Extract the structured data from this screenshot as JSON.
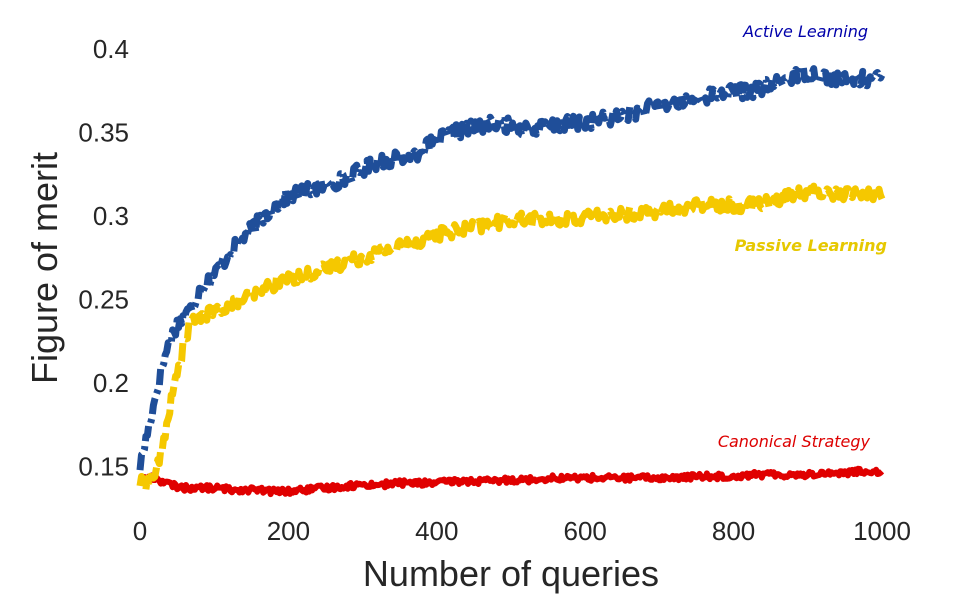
{
  "chart_data": {
    "type": "line",
    "title": "",
    "xlabel": "Number of queries",
    "ylabel": "Figure of merit",
    "xlim": [
      0,
      1000
    ],
    "ylim": [
      0.125,
      0.425
    ],
    "xticks": [
      0,
      200,
      400,
      600,
      800,
      1000
    ],
    "xtick_labels": [
      "0",
      "200",
      "400",
      "600",
      "800",
      "1000"
    ],
    "yticks": [
      0.15,
      0.2,
      0.25,
      0.3,
      0.35,
      0.4
    ],
    "ytick_labels": [
      "0.15",
      "0.2",
      "0.25",
      "0.3",
      "0.35",
      "0.4"
    ],
    "grid": false,
    "legend": "inline text labels near line ends",
    "x": [
      0,
      10,
      20,
      30,
      40,
      50,
      60,
      70,
      80,
      100,
      125,
      150,
      175,
      200,
      225,
      250,
      275,
      300,
      325,
      350,
      375,
      400,
      425,
      450,
      475,
      500,
      525,
      550,
      575,
      600,
      625,
      650,
      675,
      700,
      725,
      750,
      775,
      800,
      825,
      850,
      875,
      900,
      925,
      950,
      975,
      1000
    ],
    "series": [
      {
        "name": "Active Learning",
        "color": "#1f4e99",
        "label_color": "#0000aa",
        "values": [
          0.15,
          0.17,
          0.19,
          0.21,
          0.225,
          0.235,
          0.24,
          0.245,
          0.255,
          0.265,
          0.28,
          0.292,
          0.303,
          0.312,
          0.315,
          0.318,
          0.322,
          0.328,
          0.333,
          0.334,
          0.338,
          0.345,
          0.35,
          0.353,
          0.355,
          0.354,
          0.352,
          0.353,
          0.355,
          0.356,
          0.358,
          0.36,
          0.363,
          0.366,
          0.368,
          0.37,
          0.373,
          0.374,
          0.375,
          0.378,
          0.383,
          0.386,
          0.383,
          0.381,
          0.382,
          0.382
        ]
      },
      {
        "name": "Passive Learning",
        "color": "#f5c800",
        "label_color": "#e6c800",
        "values": [
          0.14,
          0.14,
          0.145,
          0.16,
          0.185,
          0.205,
          0.225,
          0.238,
          0.24,
          0.242,
          0.248,
          0.252,
          0.258,
          0.262,
          0.265,
          0.268,
          0.272,
          0.275,
          0.279,
          0.282,
          0.285,
          0.289,
          0.291,
          0.293,
          0.295,
          0.298,
          0.298,
          0.297,
          0.298,
          0.299,
          0.3,
          0.301,
          0.302,
          0.303,
          0.304,
          0.306,
          0.307,
          0.306,
          0.307,
          0.309,
          0.312,
          0.314,
          0.314,
          0.313,
          0.313,
          0.313
        ]
      },
      {
        "name": "Canonical Strategy",
        "color": "#e00000",
        "label_color": "#dd0000",
        "values": [
          0.142,
          0.143,
          0.143,
          0.141,
          0.139,
          0.138,
          0.137,
          0.137,
          0.137,
          0.137,
          0.136,
          0.136,
          0.135,
          0.135,
          0.136,
          0.137,
          0.138,
          0.139,
          0.139,
          0.14,
          0.14,
          0.14,
          0.141,
          0.141,
          0.141,
          0.142,
          0.142,
          0.143,
          0.143,
          0.143,
          0.143,
          0.143,
          0.143,
          0.143,
          0.143,
          0.144,
          0.144,
          0.144,
          0.145,
          0.145,
          0.145,
          0.145,
          0.146,
          0.146,
          0.147,
          0.147
        ]
      }
    ]
  }
}
